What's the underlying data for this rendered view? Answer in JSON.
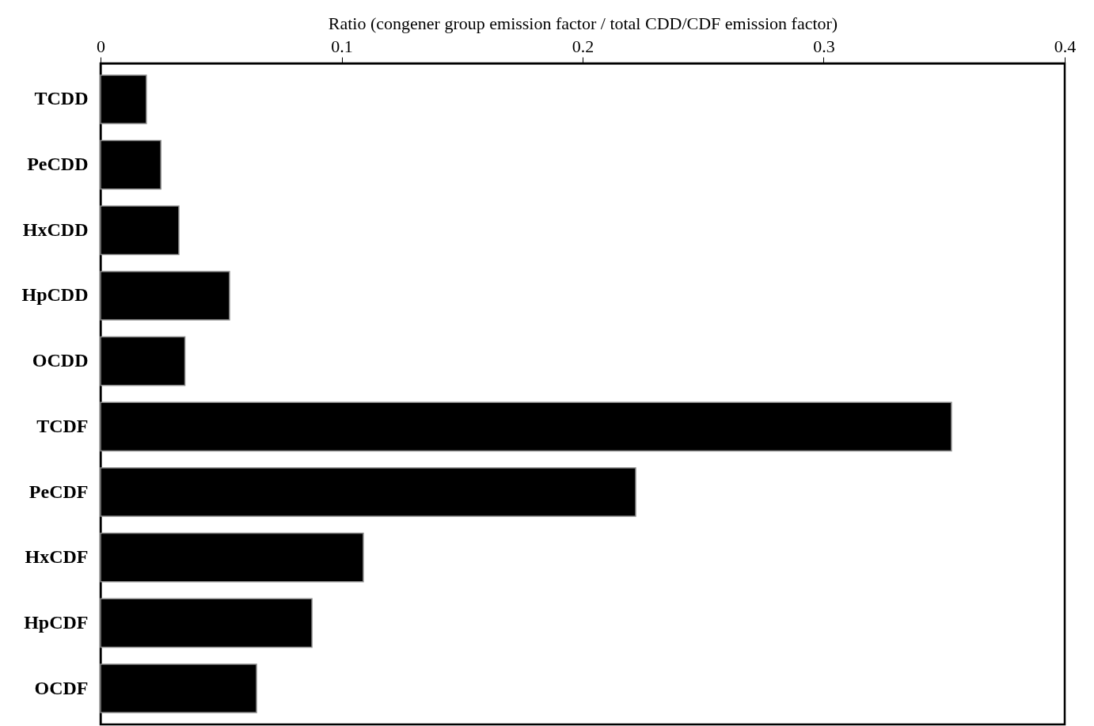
{
  "chart_data": {
    "type": "bar",
    "orientation": "horizontal",
    "xlabel": "Ratio (congener group emission factor / total CDD/CDF emission factor)",
    "categories": [
      "TCDD",
      "PeCDD",
      "HxCDD",
      "HpCDD",
      "OCDD",
      "TCDF",
      "PeCDF",
      "HxCDF",
      "HpCDF",
      "OCDF"
    ],
    "values": [
      0.019,
      0.025,
      0.0325,
      0.0535,
      0.035,
      0.353,
      0.222,
      0.109,
      0.0877,
      0.0647
    ],
    "color": "#000000",
    "xlim": [
      0,
      0.4
    ],
    "xticks": [
      0,
      0.1,
      0.2,
      0.3,
      0.4
    ],
    "grid": false
  }
}
